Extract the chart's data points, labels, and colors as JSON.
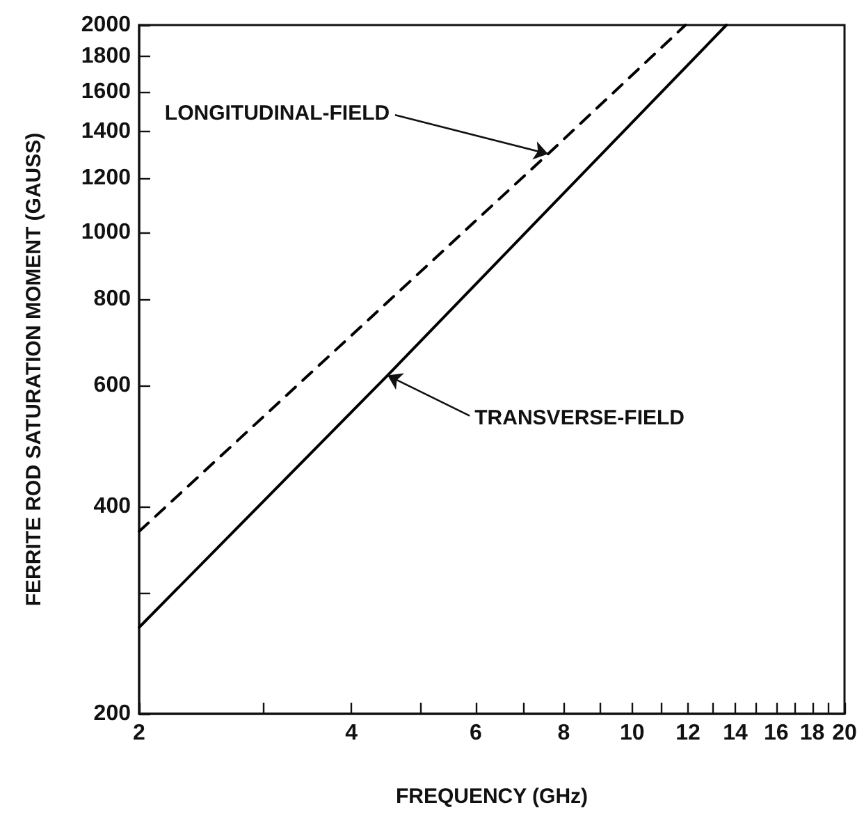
{
  "chart_data": {
    "type": "line",
    "xlabel": "FREQUENCY (GHz)",
    "ylabel": "FERRITE ROD SATURATION MOMENT (GAUSS)",
    "log": "xy",
    "marker": "none",
    "grid": false,
    "xlim": [
      2,
      20
    ],
    "xticks": [
      2,
      {
        "value": 3,
        "label": null
      },
      4,
      {
        "value": 5,
        "label": null
      },
      6,
      {
        "value": 7,
        "label": null
      },
      8,
      {
        "value": 9,
        "label": null
      },
      10,
      {
        "value": 11,
        "label": null
      },
      12,
      {
        "value": 13,
        "label": null
      },
      14,
      {
        "value": 15,
        "label": null
      },
      16,
      {
        "value": 17,
        "label": null
      },
      18,
      {
        "value": 19,
        "label": null
      },
      20
    ],
    "ylim": [
      200,
      2000
    ],
    "yticks": [
      200,
      {
        "value": 300,
        "label": null
      },
      400,
      600,
      800,
      1000,
      1200,
      1400,
      1600,
      1800,
      2000
    ],
    "series": [
      {
        "color": "#000000",
        "line_style": "dashed",
        "x": [
          2,
          7.6,
          11.9
        ],
        "values": [
          368,
          1300,
          2000
        ]
      },
      {
        "color": "#000000",
        "line_style": "solid",
        "x": [
          2,
          4.5,
          13.6
        ],
        "values": [
          267,
          620,
          2000
        ]
      }
    ],
    "annotations": [
      {
        "text": "LONGITUDINAL-FIELD",
        "x": 7.6,
        "y": 1300
      },
      {
        "text": "TRANSVERSE-FIELD",
        "x": 4.5,
        "y": 620
      }
    ]
  }
}
